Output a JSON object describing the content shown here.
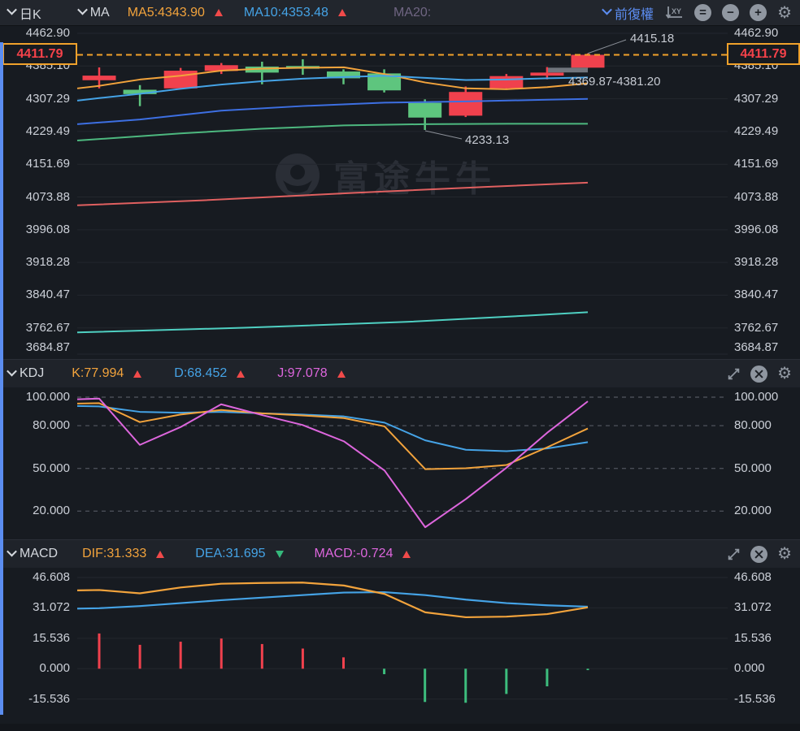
{
  "toolbar": {
    "period": "日K",
    "ma": "MA",
    "ma5": "MA5:4343.90",
    "ma10": "MA10:4353.48",
    "ma20": "MA20:",
    "adjust": "前復權"
  },
  "main": {
    "axis_labels": [
      "4462.90",
      "4385.10",
      "4307.29",
      "4229.49",
      "4151.69",
      "4073.88",
      "3996.08",
      "3918.28",
      "3840.47",
      "3762.67",
      "3684.87"
    ],
    "current_price": "4411.79",
    "annotations": {
      "high": "4415.18",
      "range": "4369.87-4381.20",
      "low": "4233.13"
    }
  },
  "kdj": {
    "title": "KDJ",
    "k": "K:77.994",
    "d": "D:68.452",
    "j": "J:97.078",
    "axis_labels": [
      "100.000",
      "80.000",
      "50.000",
      "20.000"
    ]
  },
  "macd": {
    "title": "MACD",
    "dif": "DIF:31.333",
    "dea": "DEA:31.695",
    "macd": "MACD:-0.724",
    "axis_labels": [
      "46.608",
      "31.072",
      "15.536",
      "0.000",
      "-15.536"
    ]
  },
  "watermark": "富途牛牛",
  "colors": {
    "background": "#171b21",
    "toolbar_bg": "#22262d",
    "grid": "#23272e",
    "grid_dashed": "#4a4e57",
    "axis_text": "#ccd0d8",
    "candle_up": "#f0414d",
    "candle_down": "#5ec57e",
    "ma5": "#f2a33c",
    "ma10": "#45a3e6",
    "ma20": "#3d6fe2",
    "ma_mid": "#4db87f",
    "ma_long": "#e06060",
    "ma_longest": "#4fd0c2",
    "kdj_k": "#f2a33c",
    "kdj_d": "#45a3e6",
    "kdj_j": "#dd66dd",
    "dif": "#f2a33c",
    "dea": "#45a3e6",
    "hist_up": "#f0414d",
    "hist_down": "#3dbd7d",
    "price_line": "#f0a12b",
    "price_text": "#f5424a",
    "range_box": "#70757d"
  },
  "chart_data": [
    {
      "type": "candlestick",
      "title": "日K",
      "price_axis": {
        "values": [
          4462.9,
          4385.1,
          4307.29,
          4229.49,
          4151.69,
          4073.88,
          3996.08,
          3918.28,
          3840.47,
          3762.67,
          3684.87
        ]
      },
      "current_price": 4411.79,
      "candles": [
        {
          "o": 4351.4,
          "h": 4381.8,
          "l": 4332.0,
          "c": 4362.3,
          "dir": "up"
        },
        {
          "o": 4328.7,
          "h": 4339.8,
          "l": 4289.8,
          "c": 4318.4,
          "dir": "down"
        },
        {
          "o": 4332.0,
          "h": 4380.6,
          "l": 4332.0,
          "c": 4374.0,
          "dir": "up"
        },
        {
          "o": 4373.4,
          "h": 4392.3,
          "l": 4366.2,
          "c": 4387.1,
          "dir": "up"
        },
        {
          "o": 4383.7,
          "h": 4395.4,
          "l": 4341.7,
          "c": 4369.5,
          "dir": "down"
        },
        {
          "o": 4385.1,
          "h": 4401.2,
          "l": 4364.3,
          "c": 4378.7,
          "dir": "down"
        },
        {
          "o": 4372.1,
          "h": 4377.3,
          "l": 4341.7,
          "c": 4355.9,
          "dir": "down"
        },
        {
          "o": 4367.6,
          "h": 4377.3,
          "l": 4322.3,
          "c": 4327.3,
          "dir": "down"
        },
        {
          "o": 4297.6,
          "h": 4305.9,
          "l": 4233.13,
          "c": 4262.6,
          "dir": "down"
        },
        {
          "o": 4267.1,
          "h": 4336.5,
          "l": 4263.9,
          "c": 4323.5,
          "dir": "up"
        },
        {
          "o": 4332.0,
          "h": 4366.2,
          "l": 4330.0,
          "c": 4361.2,
          "dir": "up"
        },
        {
          "o": 4362.3,
          "h": 4382.6,
          "l": 4353.4,
          "c": 4369.5,
          "dir": "up"
        },
        {
          "o": 4381.2,
          "h": 4415.18,
          "l": 4381.2,
          "c": 4411.79,
          "dir": "up"
        }
      ],
      "range_box": {
        "from": 4369.87,
        "to": 4381.2
      },
      "annotations": [
        {
          "text": "4415.18",
          "price": 4415.18
        },
        {
          "text": "4369.87-4381.20"
        },
        {
          "text": "4233.13",
          "price": 4233.13
        }
      ],
      "ma_series": [
        {
          "name": "MA5",
          "color_key": "ma5",
          "points": [
            [
              95,
              4332
            ],
            [
              122,
              4338
            ],
            [
              172,
              4353
            ],
            [
              222,
              4362
            ],
            [
              272,
              4374
            ],
            [
              322,
              4379
            ],
            [
              372,
              4381
            ],
            [
              423,
              4382
            ],
            [
              473,
              4366
            ],
            [
              523,
              4346
            ],
            [
              573,
              4332
            ],
            [
              623,
              4330
            ],
            [
              673,
              4335
            ],
            [
              723,
              4344
            ]
          ]
        },
        {
          "name": "MA10",
          "color_key": "ma10",
          "points": [
            [
              95,
              4303
            ],
            [
              122,
              4309
            ],
            [
              172,
              4319
            ],
            [
              222,
              4331
            ],
            [
              272,
              4341
            ],
            [
              322,
              4349
            ],
            [
              372,
              4355
            ],
            [
              423,
              4359
            ],
            [
              473,
              4362
            ],
            [
              523,
              4357
            ],
            [
              573,
              4352
            ],
            [
              623,
              4353
            ],
            [
              673,
              4356
            ],
            [
              723,
              4358
            ]
          ]
        },
        {
          "name": "MA20",
          "color_key": "ma20",
          "points": [
            [
              95,
              4247
            ],
            [
              172,
              4258
            ],
            [
              272,
              4279
            ],
            [
              372,
              4290
            ],
            [
              473,
              4298
            ],
            [
              573,
              4301
            ],
            [
              673,
              4305
            ],
            [
              723,
              4307
            ]
          ]
        },
        {
          "name": "MA-mid",
          "color_key": "ma_mid",
          "points": [
            [
              95,
              4208
            ],
            [
              222,
              4225
            ],
            [
              322,
              4236
            ],
            [
              423,
              4244
            ],
            [
              523,
              4247
            ],
            [
              623,
              4248
            ],
            [
              723,
              4248
            ]
          ]
        },
        {
          "name": "MA-long",
          "color_key": "ma_long",
          "points": [
            [
              95,
              4054
            ],
            [
              250,
              4066
            ],
            [
              450,
              4085
            ],
            [
              600,
              4098
            ],
            [
              723,
              4108
            ]
          ]
        },
        {
          "name": "MA-longest",
          "color_key": "ma_longest",
          "points": [
            [
              95,
              3752
            ],
            [
              300,
              3763
            ],
            [
              500,
              3777
            ],
            [
              650,
              3792
            ],
            [
              723,
              3800
            ]
          ]
        }
      ]
    },
    {
      "type": "line",
      "title": "KDJ",
      "axis_values": [
        100,
        80,
        50,
        20
      ],
      "latest": {
        "k": 77.994,
        "d": 68.452,
        "j": 97.078
      },
      "series": [
        {
          "name": "D",
          "color_key": "kdj_d",
          "points": [
            [
              95,
              93.8
            ],
            [
              122,
              93.5
            ],
            [
              172,
              89.7
            ],
            [
              222,
              89.1
            ],
            [
              272,
              89.7
            ],
            [
              322,
              88.7
            ],
            [
              372,
              87.8
            ],
            [
              423,
              86.5
            ],
            [
              473,
              82.1
            ],
            [
              523,
              69.7
            ],
            [
              573,
              63.1
            ],
            [
              623,
              62.1
            ],
            [
              673,
              64.0
            ],
            [
              723,
              68.452
            ]
          ]
        },
        {
          "name": "K",
          "color_key": "kdj_k",
          "points": [
            [
              95,
              95.5
            ],
            [
              122,
              95.8
            ],
            [
              172,
              82.5
            ],
            [
              222,
              87.8
            ],
            [
              272,
              91.0
            ],
            [
              322,
              88.7
            ],
            [
              372,
              87.2
            ],
            [
              423,
              85.3
            ],
            [
              473,
              79.5
            ],
            [
              523,
              49.5
            ],
            [
              573,
              50.1
            ],
            [
              623,
              52.4
            ],
            [
              673,
              64.8
            ],
            [
              723,
              77.994
            ]
          ]
        },
        {
          "name": "J",
          "color_key": "kdj_j",
          "points": [
            [
              95,
              98.5
            ],
            [
              122,
              99
            ],
            [
              172,
              66.5
            ],
            [
              222,
              79
            ],
            [
              272,
              95
            ],
            [
              322,
              87.5
            ],
            [
              372,
              80.5
            ],
            [
              423,
              69
            ],
            [
              473,
              48.5
            ],
            [
              523,
              8.7
            ],
            [
              573,
              28.5
            ],
            [
              623,
              50.5
            ],
            [
              673,
              75
            ],
            [
              723,
              97.078
            ]
          ]
        }
      ]
    },
    {
      "type": "macd",
      "title": "MACD",
      "axis_values": [
        46.608,
        31.072,
        15.536,
        0,
        -15.536
      ],
      "latest": {
        "dif": 31.333,
        "dea": 31.695,
        "macd": -0.724
      },
      "dea": {
        "color_key": "dea",
        "points": [
          [
            95,
            30.7
          ],
          [
            122,
            30.9
          ],
          [
            172,
            32.0
          ],
          [
            222,
            33.5
          ],
          [
            272,
            35.0
          ],
          [
            322,
            36.3
          ],
          [
            372,
            37.6
          ],
          [
            423,
            38.9
          ],
          [
            473,
            39.1
          ],
          [
            523,
            37.6
          ],
          [
            573,
            35.3
          ],
          [
            623,
            33.5
          ],
          [
            673,
            32.4
          ],
          [
            723,
            31.695
          ]
        ]
      },
      "dif": {
        "color_key": "dif",
        "points": [
          [
            95,
            40.0
          ],
          [
            122,
            40.2
          ],
          [
            172,
            38.5
          ],
          [
            222,
            41.5
          ],
          [
            272,
            43.4
          ],
          [
            322,
            43.8
          ],
          [
            372,
            44.0
          ],
          [
            423,
            42.5
          ],
          [
            473,
            38.2
          ],
          [
            523,
            28.8
          ],
          [
            573,
            26.3
          ],
          [
            623,
            26.6
          ],
          [
            673,
            27.9
          ],
          [
            723,
            31.333
          ]
        ]
      },
      "histogram": [
        18.0,
        12.2,
        13.8,
        15.4,
        12.6,
        10.3,
        5.8,
        -2.8,
        -17.0,
        -17.4,
        -12.9,
        -9.0,
        -0.724
      ]
    }
  ]
}
